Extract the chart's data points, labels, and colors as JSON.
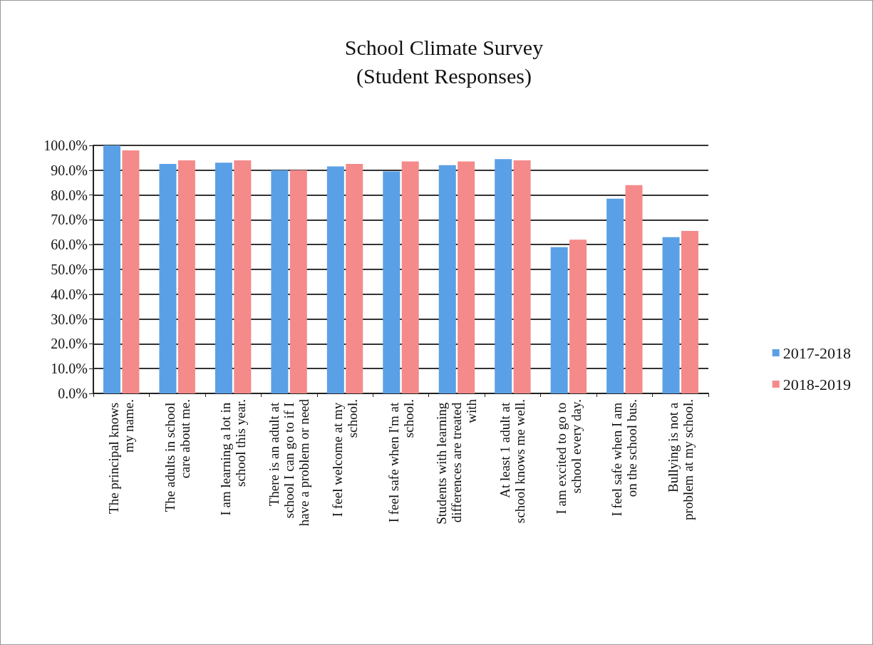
{
  "chart_data": {
    "type": "bar",
    "title": "School Climate Survey\n(Student Responses)",
    "categories": [
      "The principal knows my name.",
      "The adults in school care about me.",
      "I am learning a lot in school this year.",
      "There is an adult at school I can go to if I have a problem or need",
      "I feel welcome at my school.",
      "I feel safe when I'm at school.",
      "Students with learning differences are treated with",
      "At least 1 adult at school knows me well.",
      "I am excited to go to school every day.",
      "I feel safe when I am on the school bus.",
      "Bullying is not a problem at my school."
    ],
    "series": [
      {
        "name": "2017-2018",
        "color": "#5aa0e6",
        "values": [
          100,
          92.5,
          93,
          90,
          91.5,
          89.5,
          92,
          94.5,
          59,
          78.5,
          63
        ]
      },
      {
        "name": "2018-2019",
        "color": "#f48a8a",
        "values": [
          98,
          94,
          94,
          90,
          92.5,
          93.5,
          93.5,
          94,
          62,
          84,
          65.5
        ]
      }
    ],
    "ylim": [
      0,
      100
    ],
    "yticks": [
      {
        "value": 0,
        "label": "0.0%"
      },
      {
        "value": 10,
        "label": "10.0%"
      },
      {
        "value": 20,
        "label": "20.0%"
      },
      {
        "value": 30,
        "label": "30.0%"
      },
      {
        "value": 40,
        "label": "40.0%"
      },
      {
        "value": 50,
        "label": "50.0%"
      },
      {
        "value": 60,
        "label": "60.0%"
      },
      {
        "value": 70,
        "label": "70.0%"
      },
      {
        "value": 80,
        "label": "80.0%"
      },
      {
        "value": 90,
        "label": "90.0%"
      },
      {
        "value": 100,
        "label": "100.0%"
      }
    ],
    "grid": "y",
    "legend": "right"
  }
}
